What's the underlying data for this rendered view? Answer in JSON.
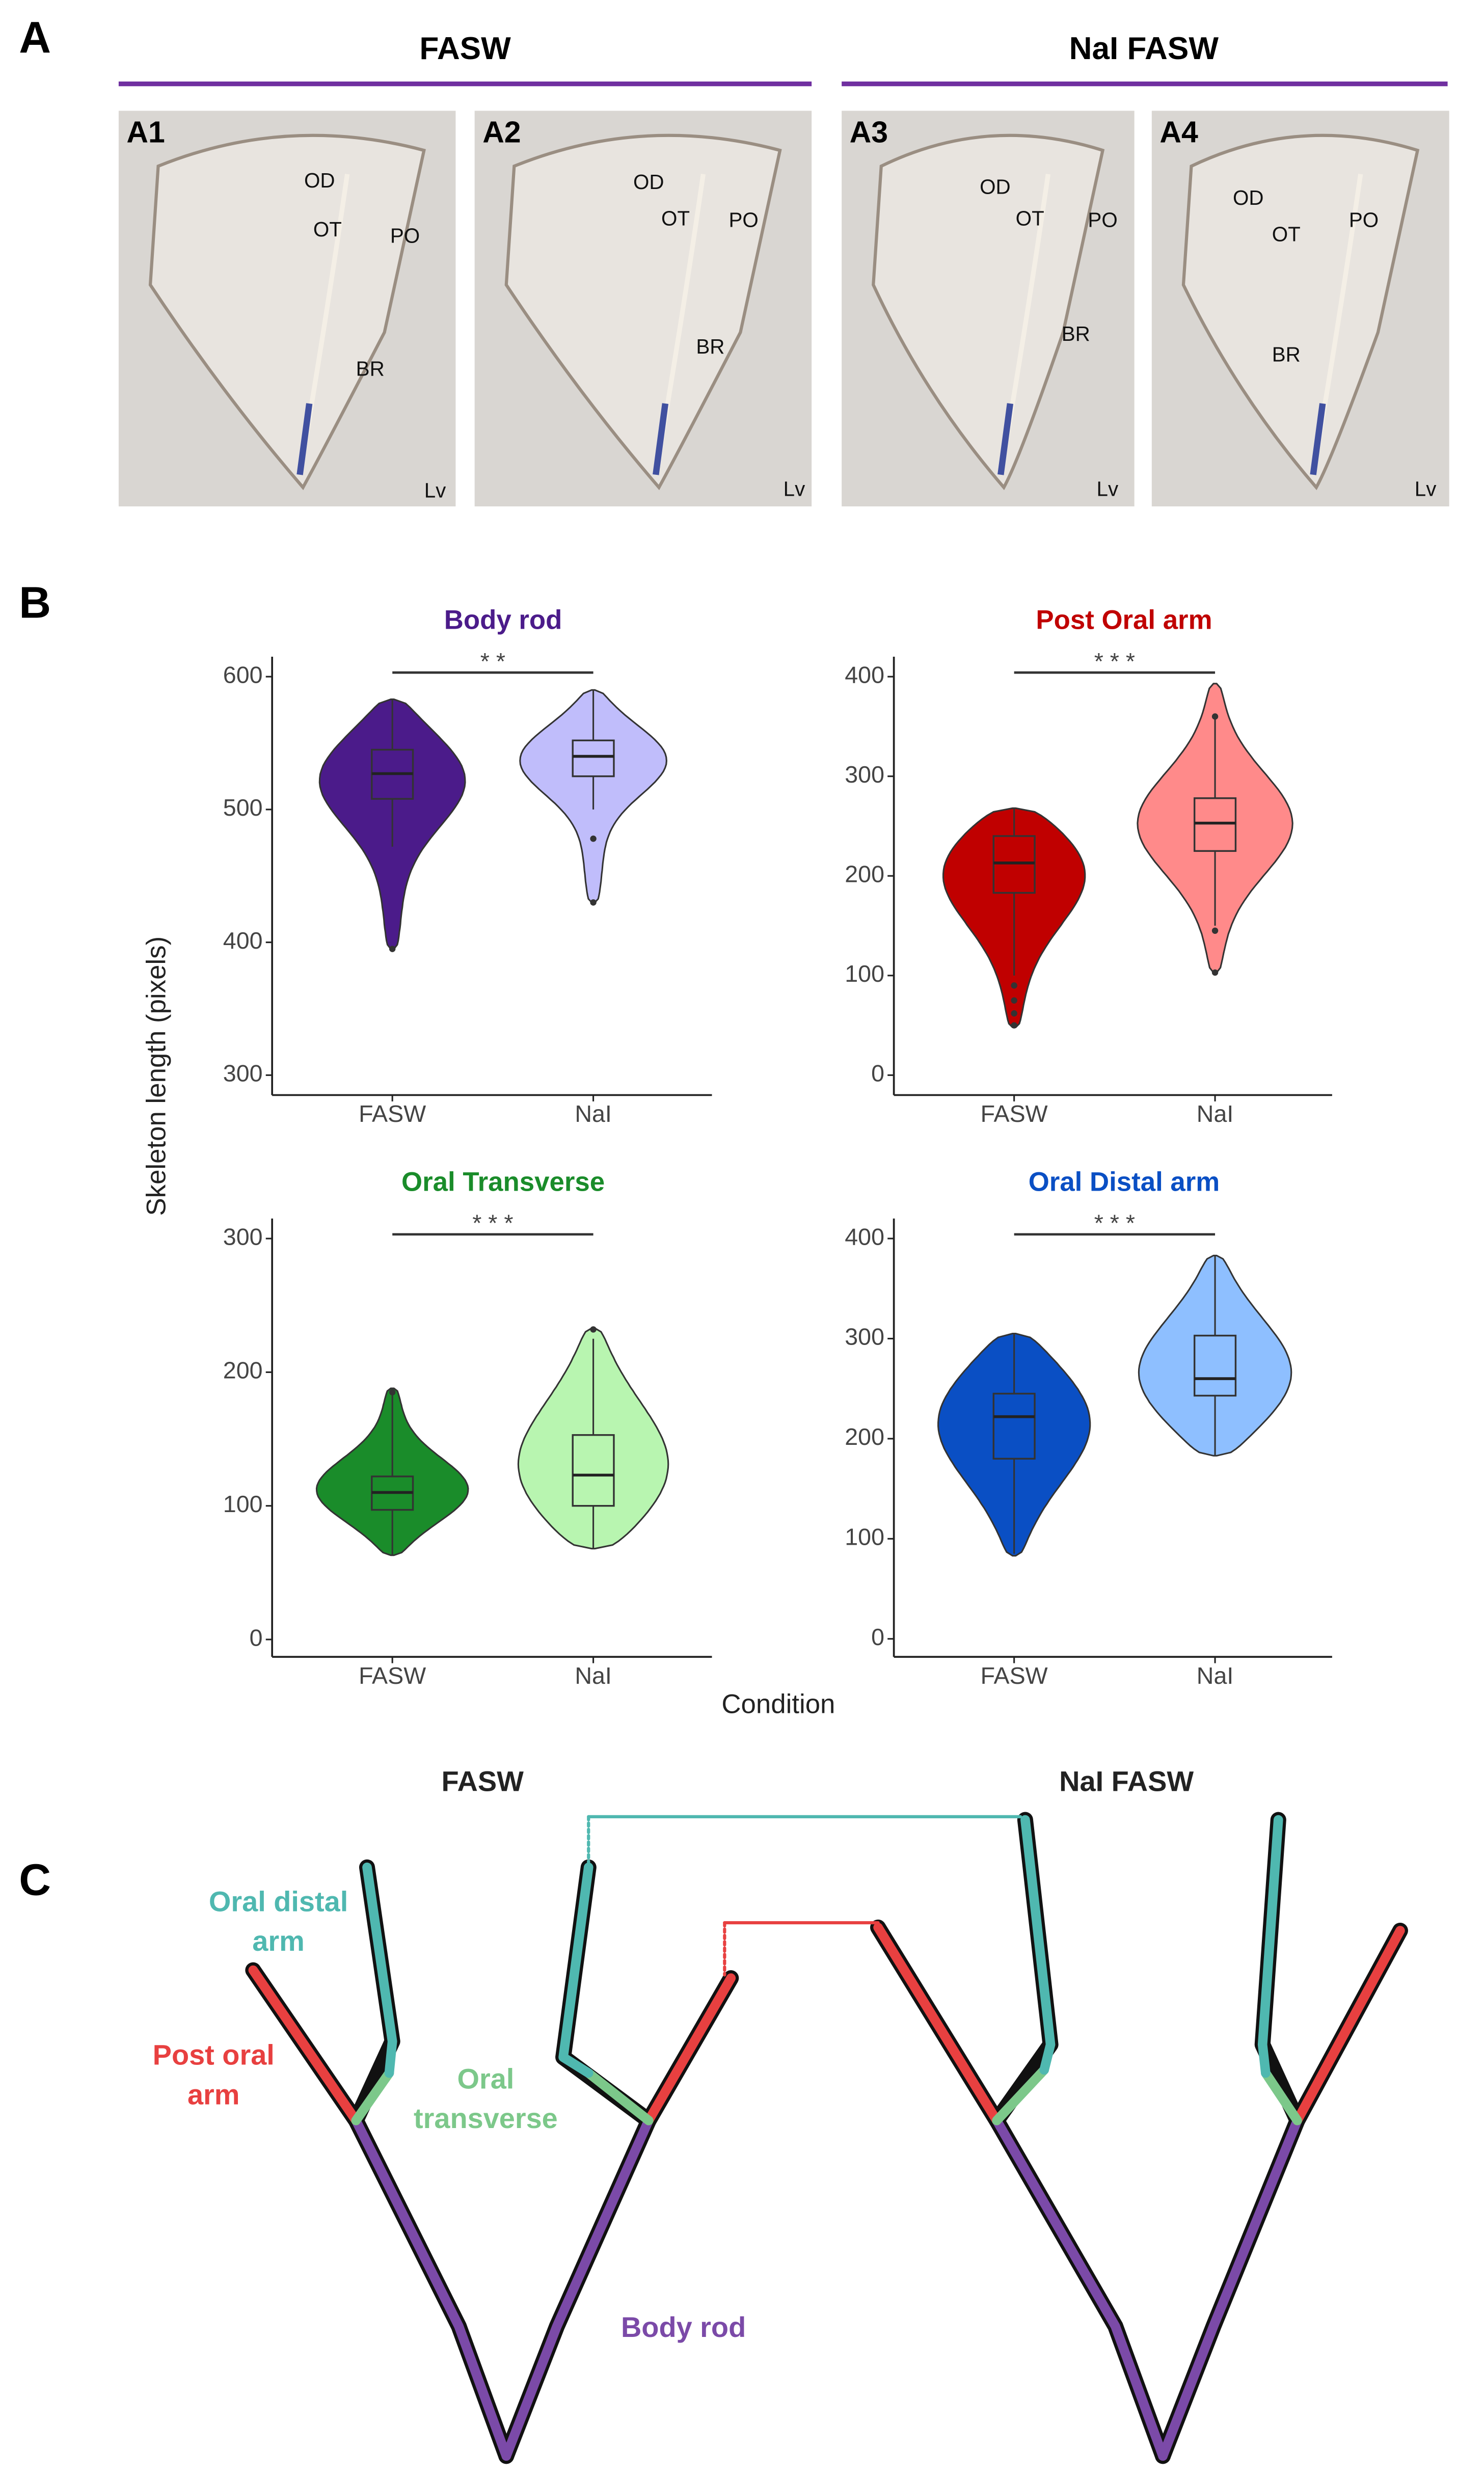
{
  "panel_labels": [
    "A",
    "B",
    "C"
  ],
  "panel_a": {
    "groups": [
      "FASW",
      "NaI FASW"
    ],
    "images": [
      {
        "label": "A1",
        "annotations": [
          "OD",
          "OT",
          "PO",
          "BR",
          "Lv"
        ]
      },
      {
        "label": "A2",
        "annotations": [
          "OD",
          "OT",
          "PO",
          "BR",
          "Lv"
        ]
      },
      {
        "label": "A3",
        "annotations": [
          "OD",
          "OT",
          "PO",
          "BR",
          "Lv"
        ]
      },
      {
        "label": "A4",
        "annotations": [
          "OD",
          "OT",
          "PO",
          "BR",
          "Lv"
        ]
      }
    ]
  },
  "y_label": "Skeleton length (pixels)",
  "x_label": "Condition",
  "chart_data": [
    {
      "type": "violin",
      "title": "Body rod",
      "title_color": "#4b1b8a",
      "categories": [
        "FASW",
        "NaI"
      ],
      "colors": [
        "#4b1b8a",
        "#c0bdfb"
      ],
      "significance": "* *",
      "ylim": [
        285,
        615
      ],
      "yticks": [
        300,
        400,
        500,
        600
      ],
      "boxes": [
        {
          "min": 395,
          "whisker_low": 472,
          "q1": 508,
          "median": 527,
          "q3": 545,
          "whisker_high": 583,
          "max": 583,
          "outliers": [
            395
          ]
        },
        {
          "min": 430,
          "whisker_low": 500,
          "q1": 525,
          "median": 540,
          "q3": 552,
          "whisker_high": 590,
          "max": 590,
          "outliers": [
            478,
            430
          ]
        }
      ]
    },
    {
      "type": "violin",
      "title": "Post Oral arm",
      "title_color": "#c00000",
      "categories": [
        "FASW",
        "NaI"
      ],
      "colors": [
        "#c00000",
        "#ff8a8a"
      ],
      "significance": "* * *",
      "ylim": [
        -20,
        420
      ],
      "yticks": [
        0,
        100,
        200,
        300,
        400
      ],
      "boxes": [
        {
          "min": 48,
          "whisker_low": 100,
          "q1": 183,
          "median": 213,
          "q3": 240,
          "whisker_high": 268,
          "max": 268,
          "outliers": [
            90,
            75,
            62,
            50
          ]
        },
        {
          "min": 103,
          "whisker_low": 150,
          "q1": 225,
          "median": 253,
          "q3": 278,
          "whisker_high": 360,
          "max": 393,
          "outliers": [
            360,
            145,
            103
          ]
        }
      ]
    },
    {
      "type": "violin",
      "title": "Oral Transverse",
      "title_color": "#1a8c2a",
      "categories": [
        "FASW",
        "NaI"
      ],
      "colors": [
        "#1a8c2a",
        "#b8f5b0"
      ],
      "significance": "* * *",
      "ylim": [
        -13,
        315
      ],
      "yticks": [
        0,
        100,
        200,
        300
      ],
      "boxes": [
        {
          "min": 63,
          "whisker_low": 63,
          "q1": 97,
          "median": 110,
          "q3": 122,
          "whisker_high": 185,
          "max": 188,
          "outliers": [
            185
          ]
        },
        {
          "min": 68,
          "whisker_low": 68,
          "q1": 100,
          "median": 123,
          "q3": 153,
          "whisker_high": 225,
          "max": 233,
          "outliers": [
            232
          ]
        }
      ]
    },
    {
      "type": "violin",
      "title": "Oral Distal arm",
      "title_color": "#0a4fc4",
      "categories": [
        "FASW",
        "NaI"
      ],
      "colors": [
        "#0a4fc4",
        "#8ebfff"
      ],
      "significance": "* * *",
      "ylim": [
        -18,
        420
      ],
      "yticks": [
        0,
        100,
        200,
        300,
        400
      ],
      "boxes": [
        {
          "min": 83,
          "whisker_low": 85,
          "q1": 180,
          "median": 222,
          "q3": 245,
          "whisker_high": 305,
          "max": 305,
          "outliers": []
        },
        {
          "min": 183,
          "whisker_low": 183,
          "q1": 243,
          "median": 260,
          "q3": 303,
          "whisker_high": 383,
          "max": 383,
          "outliers": []
        }
      ]
    }
  ],
  "panel_c": {
    "groups": [
      "FASW",
      "NaI FASW"
    ],
    "labels": [
      {
        "lines": [
          "Oral distal",
          "arm"
        ],
        "color": "#4fb8b0"
      },
      {
        "lines": [
          "Post oral",
          "arm"
        ],
        "color": "#e84040"
      },
      {
        "lines": [
          "Oral",
          "transverse"
        ],
        "color": "#7cc88a"
      },
      {
        "lines": [
          "Body rod"
        ],
        "color": "#7b4aa8"
      }
    ]
  }
}
